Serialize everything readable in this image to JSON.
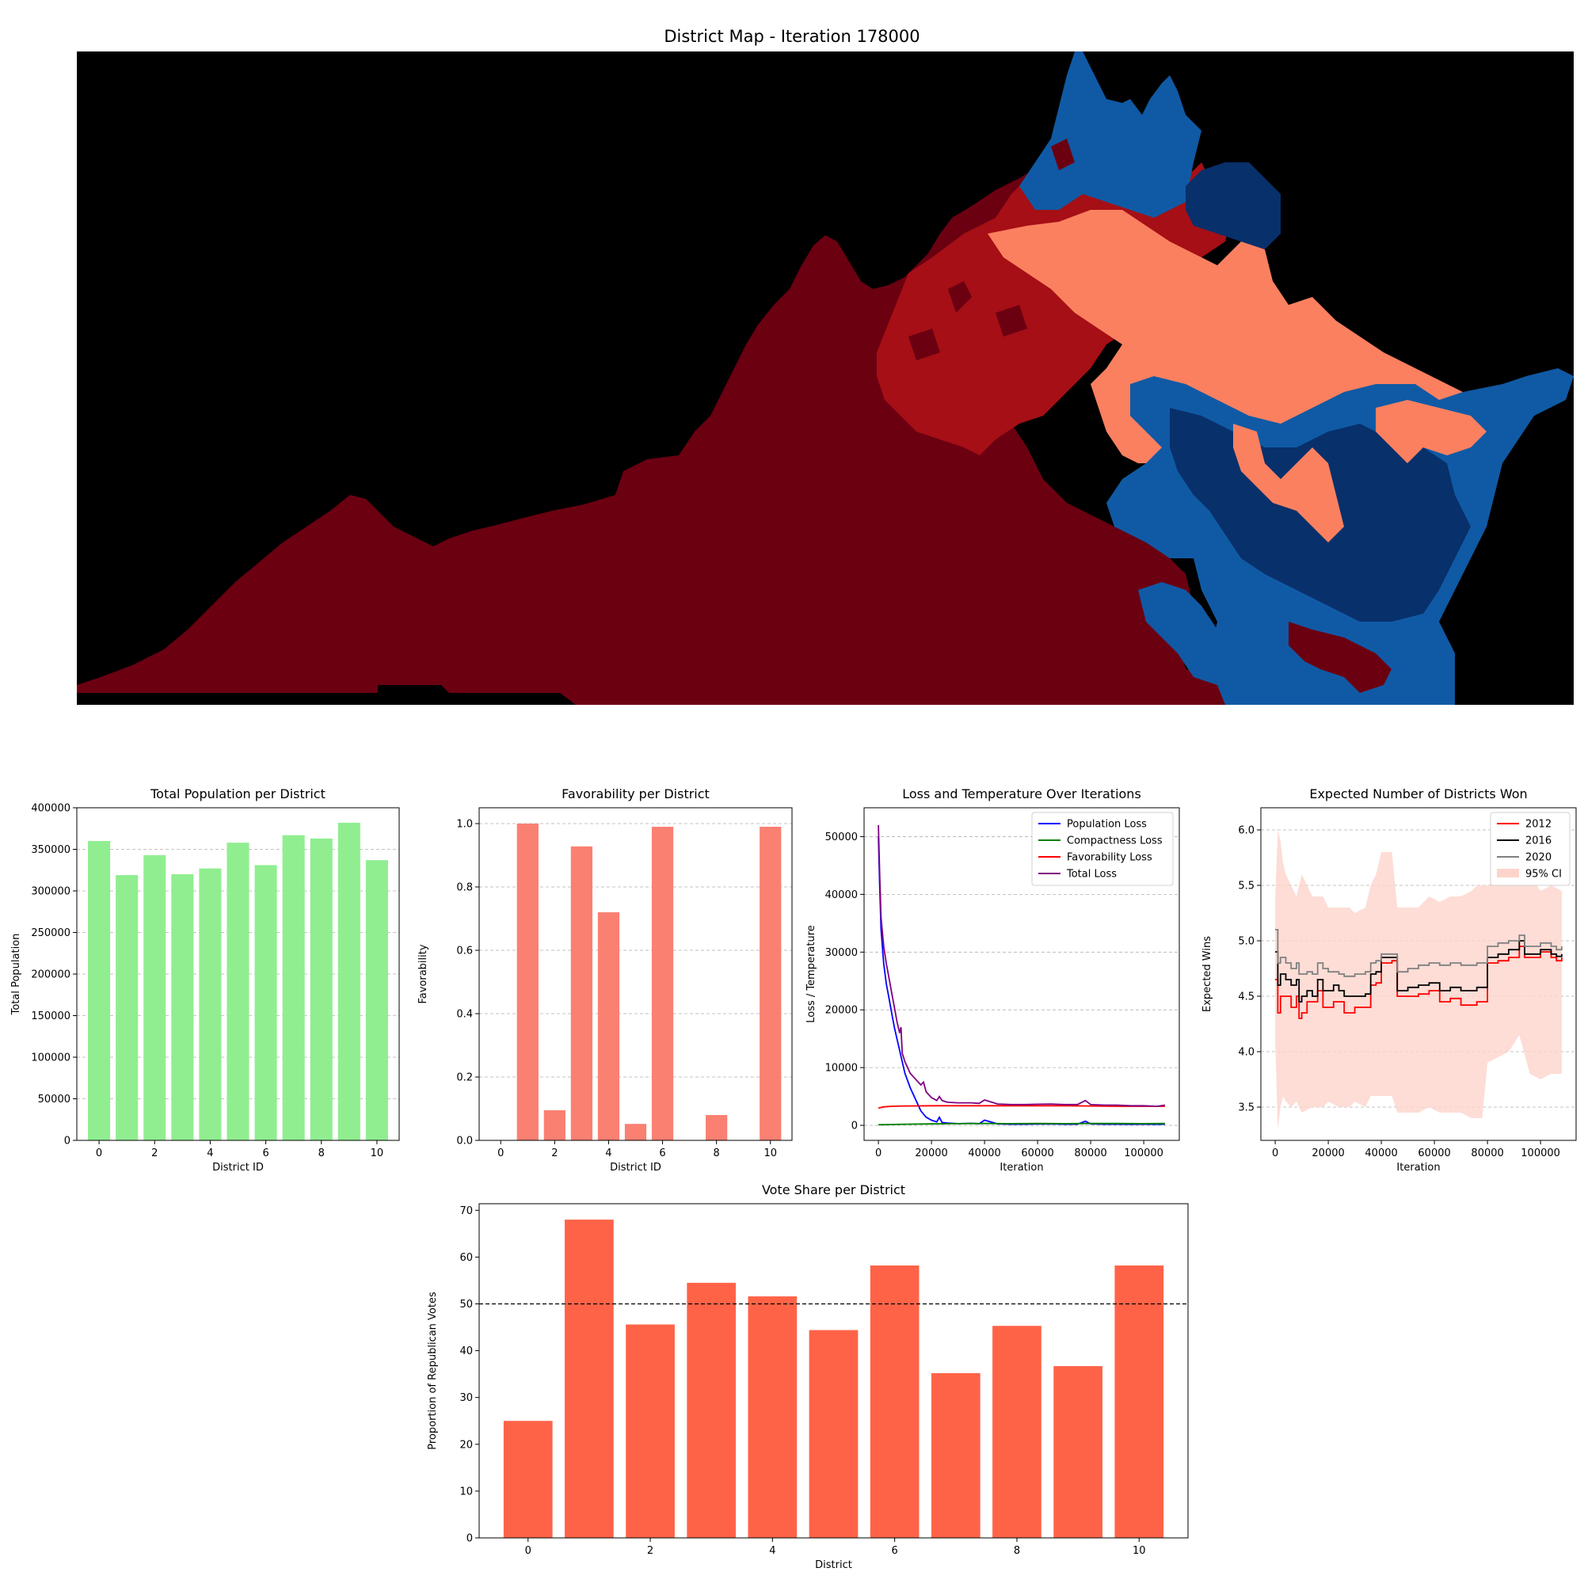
{
  "map": {
    "title": "District Map - Iteration 178000",
    "colors": {
      "background": "#000000",
      "dark_red": "#6b0011",
      "red": "#a50f15",
      "salmon": "#fb8060",
      "blue": "#105aa5",
      "dark_blue": "#08306b"
    }
  },
  "chart_data": [
    {
      "id": "population",
      "type": "bar",
      "title": "Total Population per District",
      "xlabel": "District ID",
      "ylabel": "Total Population",
      "categories": [
        0,
        1,
        2,
        3,
        4,
        5,
        6,
        7,
        8,
        9,
        10
      ],
      "values": [
        360000,
        319000,
        343000,
        320000,
        327000,
        358000,
        331000,
        367000,
        363000,
        382000,
        337000
      ],
      "ylim": [
        0,
        400000
      ],
      "xticks": [
        0,
        2,
        4,
        6,
        8,
        10
      ],
      "yticks": [
        0,
        50000,
        100000,
        150000,
        200000,
        250000,
        300000,
        350000,
        400000
      ],
      "ytick_labels": [
        "0",
        "50000",
        "100000",
        "150000",
        "200000",
        "250000",
        "300000",
        "350000",
        "400000"
      ],
      "color": "#90ee90",
      "grid": "y-dashed"
    },
    {
      "id": "favorability",
      "type": "bar",
      "title": "Favorability per District",
      "xlabel": "District ID",
      "ylabel": "Favorability",
      "categories": [
        0,
        1,
        2,
        3,
        4,
        5,
        6,
        7,
        8,
        9,
        10
      ],
      "values": [
        0.0,
        1.0,
        0.095,
        0.928,
        0.72,
        0.052,
        0.99,
        0.0,
        0.08,
        0.0,
        0.99
      ],
      "ylim": [
        0,
        1.05
      ],
      "xticks": [
        0,
        2,
        4,
        6,
        8,
        10
      ],
      "yticks": [
        0,
        0.2,
        0.4,
        0.6,
        0.8,
        1.0
      ],
      "ytick_labels": [
        "0.0",
        "0.2",
        "0.4",
        "0.6",
        "0.8",
        "1.0"
      ],
      "color": "#fa8072",
      "grid": "y-dashed"
    },
    {
      "id": "loss",
      "type": "line",
      "title": "Loss and Temperature Over Iterations",
      "xlabel": "Iteration",
      "ylabel": "Loss / Temperature",
      "xlim": [
        -5400,
        113400
      ],
      "ylim": [
        -2600,
        55000
      ],
      "xticks": [
        0,
        20000,
        40000,
        60000,
        80000,
        100000
      ],
      "xtick_labels": [
        "0",
        "20000",
        "40000",
        "60000",
        "80000",
        "100000"
      ],
      "yticks": [
        0,
        10000,
        20000,
        30000,
        40000,
        50000
      ],
      "ytick_labels": [
        "0",
        "10000",
        "20000",
        "30000",
        "40000",
        "50000"
      ],
      "legend_position": "upper right",
      "grid": "y-dashed",
      "series": [
        {
          "name": "Population Loss",
          "color": "#0000ff",
          "x": [
            0,
            500,
            1000,
            2000,
            3000,
            4000,
            5000,
            6000,
            7000,
            8000,
            9000,
            10000,
            12000,
            14000,
            16000,
            18000,
            20000,
            22000,
            23000,
            24000,
            26000,
            30000,
            35000,
            38000,
            40000,
            45000,
            50000,
            55000,
            60000,
            65000,
            70000,
            75000,
            78000,
            80000,
            85000,
            90000,
            95000,
            100000,
            105000,
            108000
          ],
          "y": [
            50000,
            41000,
            34000,
            28000,
            24500,
            22000,
            19500,
            17000,
            15000,
            13000,
            11000,
            9000,
            6500,
            4500,
            2500,
            1400,
            900,
            600,
            1400,
            500,
            400,
            300,
            350,
            280,
            900,
            250,
            200,
            200,
            220,
            250,
            200,
            200,
            700,
            250,
            200,
            200,
            180,
            200,
            180,
            200
          ]
        },
        {
          "name": "Compactness Loss",
          "color": "#008000",
          "x": [
            0,
            10000,
            20000,
            30000,
            40000,
            50000,
            60000,
            70000,
            80000,
            90000,
            100000,
            108000
          ],
          "y": [
            100,
            200,
            250,
            300,
            320,
            300,
            320,
            300,
            320,
            320,
            300,
            320
          ]
        },
        {
          "name": "Favorability Loss",
          "color": "#ff0000",
          "x": [
            0,
            2000,
            5000,
            10000,
            20000,
            30000,
            40000,
            50000,
            60000,
            70000,
            80000,
            90000,
            100000,
            108000
          ],
          "y": [
            3000,
            3200,
            3300,
            3350,
            3400,
            3400,
            3400,
            3400,
            3400,
            3400,
            3350,
            3300,
            3300,
            3300
          ]
        },
        {
          "name": "Total Loss",
          "color": "#800080",
          "x": [
            0,
            500,
            1000,
            2000,
            3000,
            4000,
            5000,
            6000,
            7000,
            8000,
            8500,
            9000,
            10000,
            12000,
            14000,
            16000,
            17000,
            18000,
            20000,
            22000,
            23000,
            24000,
            26000,
            30000,
            35000,
            38000,
            40000,
            45000,
            50000,
            55000,
            60000,
            65000,
            70000,
            75000,
            78000,
            80000,
            85000,
            90000,
            95000,
            100000,
            105000,
            108000
          ],
          "y": [
            52000,
            43000,
            36000,
            31000,
            28000,
            25500,
            23000,
            20500,
            18000,
            16000,
            17000,
            12500,
            11000,
            9000,
            8000,
            7000,
            7500,
            5800,
            4800,
            4300,
            5000,
            4300,
            4000,
            3900,
            3900,
            3800,
            4400,
            3700,
            3600,
            3600,
            3650,
            3700,
            3600,
            3600,
            4300,
            3600,
            3500,
            3500,
            3400,
            3400,
            3300,
            3500
          ]
        }
      ]
    },
    {
      "id": "expected_wins",
      "type": "line",
      "title": "Expected Number of Districts Won",
      "xlabel": "Iteration",
      "ylabel": "Expected Wins",
      "xlim": [
        -5400,
        113400
      ],
      "ylim": [
        3.2,
        6.2
      ],
      "xticks": [
        0,
        20000,
        40000,
        60000,
        80000,
        100000
      ],
      "xtick_labels": [
        "0",
        "20000",
        "40000",
        "60000",
        "80000",
        "100000"
      ],
      "yticks": [
        3.5,
        4.0,
        4.5,
        5.0,
        5.5,
        6.0
      ],
      "ytick_labels": [
        "3.5",
        "4.0",
        "4.5",
        "5.0",
        "5.5",
        "6.0"
      ],
      "legend_position": "upper right",
      "grid": "y-dashed",
      "series": [
        {
          "name": "2012",
          "color": "#ff0000",
          "x": [
            0,
            1000,
            2000,
            4000,
            6000,
            8000,
            9000,
            10000,
            12000,
            14000,
            16000,
            18000,
            20000,
            22000,
            24000,
            26000,
            28000,
            30000,
            34000,
            36000,
            38000,
            40000,
            44000,
            46000,
            50000,
            54000,
            58000,
            62000,
            66000,
            70000,
            74000,
            76000,
            78000,
            80000,
            84000,
            88000,
            92000,
            94000,
            96000,
            100000,
            104000,
            106000,
            108000
          ],
          "y": [
            4.65,
            4.35,
            4.5,
            4.5,
            4.4,
            4.5,
            4.3,
            4.35,
            4.45,
            4.45,
            4.55,
            4.4,
            4.4,
            4.45,
            4.45,
            4.35,
            4.35,
            4.4,
            4.4,
            4.6,
            4.62,
            4.8,
            4.82,
            4.5,
            4.5,
            4.52,
            4.55,
            4.45,
            4.48,
            4.42,
            4.42,
            4.45,
            4.45,
            4.8,
            4.82,
            4.85,
            4.95,
            4.85,
            4.85,
            4.9,
            4.85,
            4.82,
            4.85
          ]
        },
        {
          "name": "2016",
          "color": "#000000",
          "x": [
            0,
            1000,
            2000,
            4000,
            6000,
            8000,
            9000,
            10000,
            12000,
            14000,
            16000,
            18000,
            20000,
            22000,
            24000,
            26000,
            28000,
            30000,
            34000,
            36000,
            38000,
            40000,
            44000,
            46000,
            50000,
            54000,
            58000,
            62000,
            66000,
            70000,
            74000,
            76000,
            78000,
            80000,
            84000,
            88000,
            92000,
            94000,
            96000,
            100000,
            104000,
            106000,
            108000
          ],
          "y": [
            4.9,
            4.6,
            4.7,
            4.65,
            4.6,
            4.65,
            4.45,
            4.5,
            4.55,
            4.5,
            4.65,
            4.55,
            4.55,
            4.6,
            4.55,
            4.5,
            4.5,
            4.5,
            4.52,
            4.7,
            4.72,
            4.85,
            4.85,
            4.55,
            4.58,
            4.6,
            4.62,
            4.55,
            4.58,
            4.55,
            4.55,
            4.58,
            4.58,
            4.85,
            4.88,
            4.92,
            5.0,
            4.88,
            4.88,
            4.92,
            4.88,
            4.86,
            4.88
          ]
        },
        {
          "name": "2020",
          "color": "#808080",
          "x": [
            0,
            1000,
            2000,
            4000,
            6000,
            8000,
            9000,
            10000,
            12000,
            14000,
            16000,
            18000,
            20000,
            22000,
            24000,
            26000,
            28000,
            30000,
            34000,
            36000,
            38000,
            40000,
            44000,
            46000,
            50000,
            54000,
            58000,
            62000,
            66000,
            70000,
            74000,
            76000,
            78000,
            80000,
            84000,
            88000,
            92000,
            94000,
            96000,
            100000,
            104000,
            106000,
            108000
          ],
          "y": [
            5.1,
            4.8,
            4.85,
            4.8,
            4.75,
            4.8,
            4.7,
            4.7,
            4.72,
            4.7,
            4.8,
            4.75,
            4.72,
            4.72,
            4.7,
            4.68,
            4.68,
            4.7,
            4.72,
            4.8,
            4.82,
            4.88,
            4.88,
            4.72,
            4.75,
            4.78,
            4.8,
            4.78,
            4.8,
            4.78,
            4.78,
            4.8,
            4.8,
            4.95,
            4.98,
            5.0,
            5.05,
            4.95,
            4.95,
            4.98,
            4.95,
            4.92,
            4.95
          ]
        },
        {
          "name": "95% CI",
          "type": "band",
          "color": "#fdd4cc",
          "x": [
            0,
            1000,
            2000,
            3000,
            4000,
            6000,
            8000,
            10000,
            14000,
            18000,
            20000,
            24000,
            28000,
            30000,
            34000,
            36000,
            38000,
            40000,
            44000,
            46000,
            50000,
            54000,
            58000,
            62000,
            66000,
            70000,
            74000,
            76000,
            78000,
            80000,
            84000,
            88000,
            92000,
            96000,
            100000,
            104000,
            108000
          ],
          "upper": [
            5.4,
            6.0,
            5.9,
            5.7,
            5.6,
            5.5,
            5.4,
            5.6,
            5.4,
            5.4,
            5.3,
            5.3,
            5.3,
            5.25,
            5.3,
            5.5,
            5.6,
            5.8,
            5.8,
            5.3,
            5.3,
            5.3,
            5.4,
            5.35,
            5.4,
            5.4,
            5.45,
            5.5,
            5.5,
            5.5,
            5.55,
            5.6,
            5.7,
            5.6,
            5.45,
            5.5,
            5.45
          ],
          "lower": [
            4.1,
            3.3,
            3.5,
            3.6,
            3.55,
            3.5,
            3.55,
            3.45,
            3.5,
            3.5,
            3.55,
            3.5,
            3.5,
            3.55,
            3.5,
            3.6,
            3.6,
            3.6,
            3.6,
            3.45,
            3.45,
            3.45,
            3.5,
            3.45,
            3.45,
            3.45,
            3.4,
            3.4,
            3.4,
            3.9,
            3.95,
            4.0,
            4.15,
            3.8,
            3.75,
            3.8,
            3.8
          ]
        }
      ]
    },
    {
      "id": "vote_share",
      "type": "bar",
      "title": "Vote Share per District",
      "xlabel": "District",
      "ylabel": "Proportion of Republican Votes",
      "categories": [
        0,
        1,
        2,
        3,
        4,
        5,
        6,
        7,
        8,
        9,
        10
      ],
      "values": [
        25.0,
        68.0,
        45.6,
        54.5,
        51.6,
        44.4,
        58.2,
        35.2,
        45.3,
        36.7,
        58.2
      ],
      "ylim": [
        0,
        71.4
      ],
      "xticks": [
        0,
        2,
        4,
        6,
        8,
        10
      ],
      "yticks": [
        0,
        10,
        20,
        30,
        40,
        50,
        60,
        70
      ],
      "ytick_labels": [
        "0",
        "10",
        "20",
        "30",
        "40",
        "50",
        "60",
        "70"
      ],
      "color": "#ff6347",
      "reference_line": 50,
      "grid": "none"
    }
  ]
}
